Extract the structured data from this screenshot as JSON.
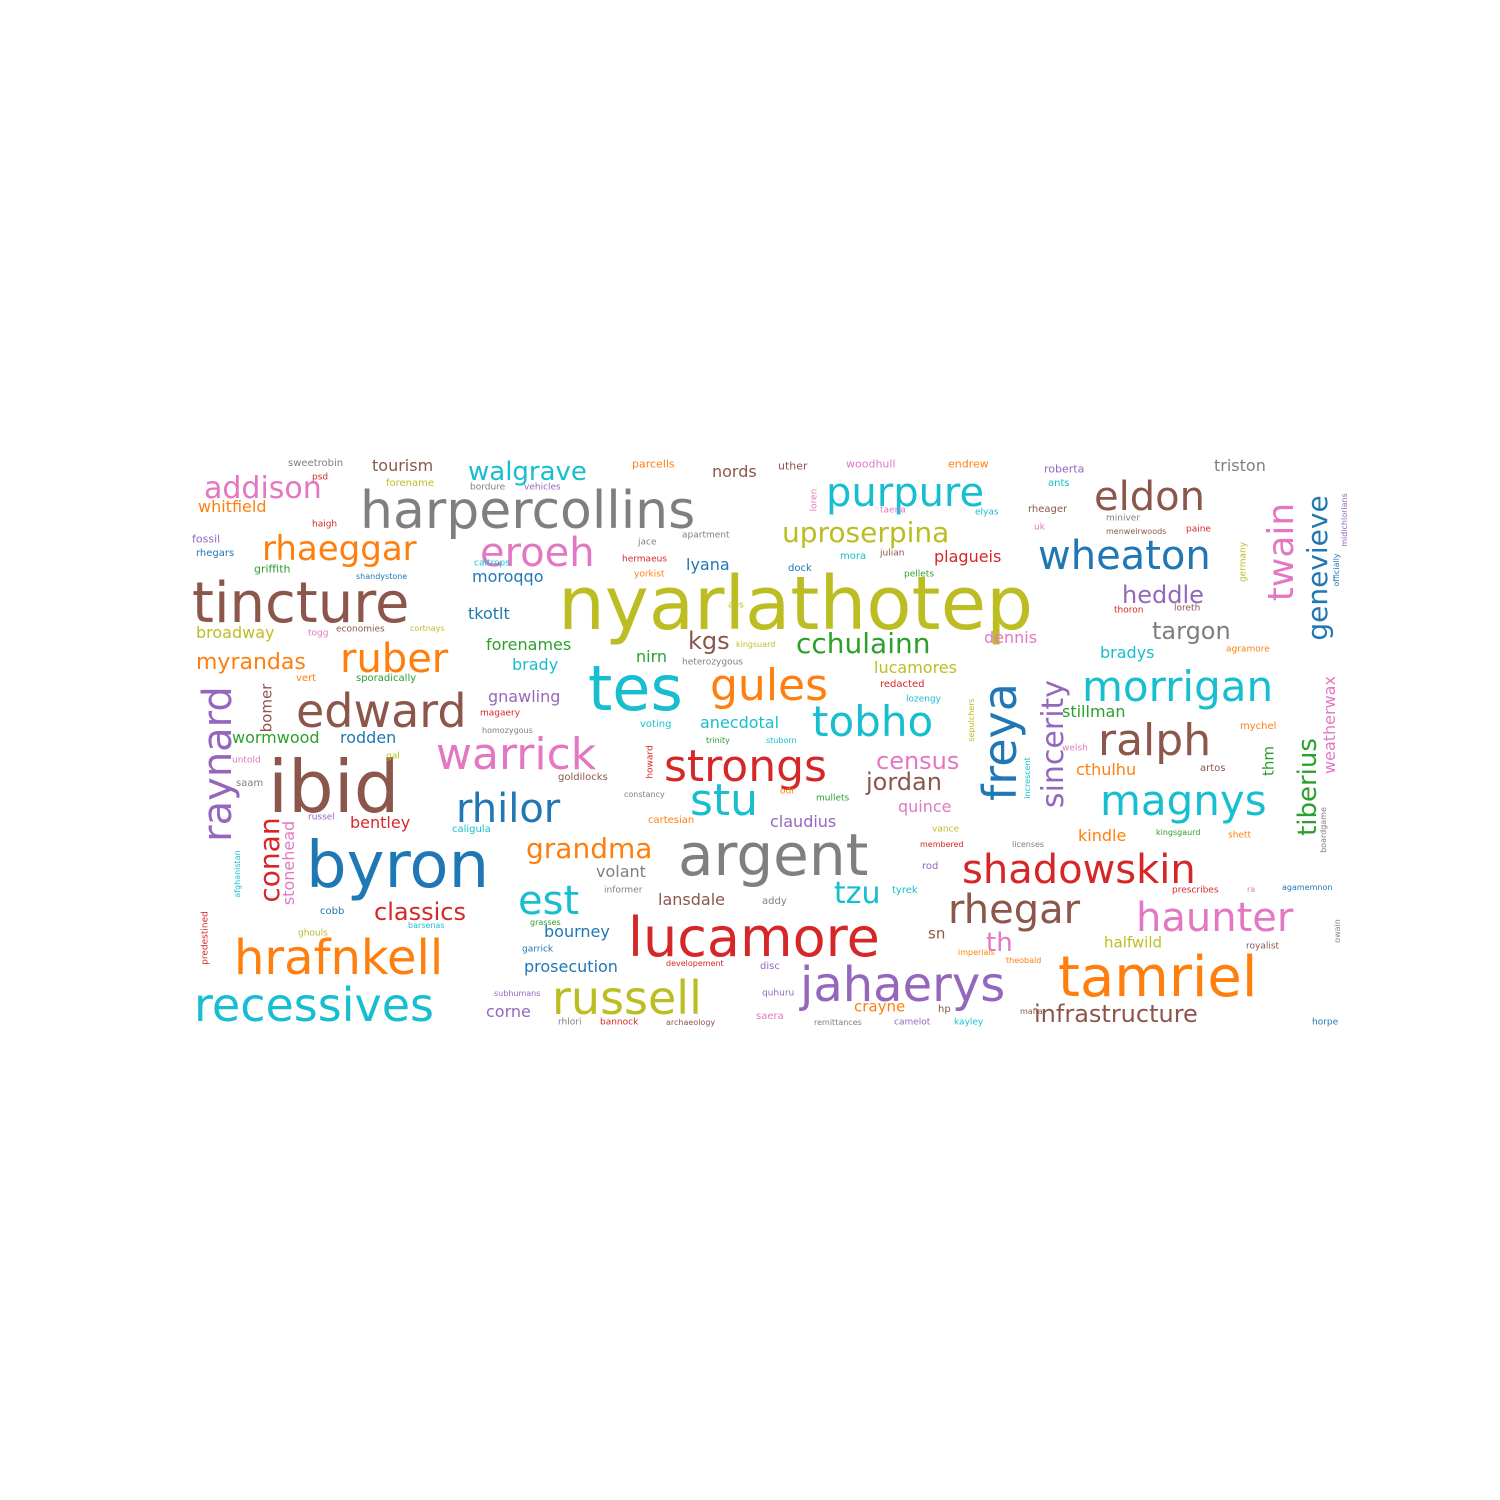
{
  "colors": {
    "blue": "#1f77b4",
    "orange": "#ff7f0e",
    "green": "#2ca02c",
    "red": "#d62728",
    "purple": "#9467bd",
    "brown": "#8c564b",
    "pink": "#e377c2",
    "gray": "#7f7f7f",
    "olive": "#bcbd22",
    "cyan": "#17becf",
    "background": "#ffffff"
  },
  "words": [
    {
      "text": "nyarlathotep",
      "color": "olive",
      "weight": 1.0
    },
    {
      "text": "harpercollins",
      "color": "gray",
      "weight": 0.55
    },
    {
      "text": "tincture",
      "color": "brown",
      "weight": 0.6
    },
    {
      "text": "tes",
      "color": "cyan",
      "weight": 0.75
    },
    {
      "text": "ibid",
      "color": "brown",
      "weight": 0.8
    },
    {
      "text": "byron",
      "color": "blue",
      "weight": 0.75
    },
    {
      "text": "argent",
      "color": "gray",
      "weight": 0.7
    },
    {
      "text": "lucamore",
      "color": "red",
      "weight": 0.6
    },
    {
      "text": "tamriel",
      "color": "orange",
      "weight": 0.6
    },
    {
      "text": "hrafnkell",
      "color": "orange",
      "weight": 0.5
    },
    {
      "text": "recessives",
      "color": "cyan",
      "weight": 0.5
    },
    {
      "text": "russell",
      "color": "olive",
      "weight": 0.5
    },
    {
      "text": "jahaerys",
      "color": "purple",
      "weight": 0.5
    },
    {
      "text": "edward",
      "color": "brown",
      "weight": 0.48
    },
    {
      "text": "warrick",
      "color": "pink",
      "weight": 0.45
    },
    {
      "text": "strongs",
      "color": "red",
      "weight": 0.45
    },
    {
      "text": "gules",
      "color": "orange",
      "weight": 0.45
    },
    {
      "text": "tobho",
      "color": "cyan",
      "weight": 0.45
    },
    {
      "text": "rhilor",
      "color": "blue",
      "weight": 0.42
    },
    {
      "text": "stu",
      "color": "cyan",
      "weight": 0.45
    },
    {
      "text": "freya",
      "color": "blue",
      "weight": 0.48
    },
    {
      "text": "ralph",
      "color": "brown",
      "weight": 0.45
    },
    {
      "text": "morrigan",
      "color": "cyan",
      "weight": 0.42
    },
    {
      "text": "magnys",
      "color": "cyan",
      "weight": 0.42
    },
    {
      "text": "shadowskin",
      "color": "red",
      "weight": 0.42
    },
    {
      "text": "rhegar",
      "color": "brown",
      "weight": 0.42
    },
    {
      "text": "haunter",
      "color": "pink",
      "weight": 0.42
    },
    {
      "text": "wheaton",
      "color": "blue",
      "weight": 0.42
    },
    {
      "text": "eldon",
      "color": "brown",
      "weight": 0.42
    },
    {
      "text": "purpure",
      "color": "cyan",
      "weight": 0.42
    },
    {
      "text": "eroeh",
      "color": "pink",
      "weight": 0.42
    },
    {
      "text": "ruber",
      "color": "orange",
      "weight": 0.42
    },
    {
      "text": "raynard",
      "color": "purple",
      "weight": 0.42
    },
    {
      "text": "twain",
      "color": "pink",
      "weight": 0.4
    },
    {
      "text": "genevieve",
      "color": "blue",
      "weight": 0.33
    },
    {
      "text": "sincerity",
      "color": "purple",
      "weight": 0.33
    },
    {
      "text": "tiberius",
      "color": "green",
      "weight": 0.3
    },
    {
      "text": "rhaeggar",
      "color": "orange",
      "weight": 0.35
    },
    {
      "text": "addison",
      "color": "pink",
      "weight": 0.33
    },
    {
      "text": "walgrave",
      "color": "cyan",
      "weight": 0.28
    },
    {
      "text": "uproserpina",
      "color": "olive",
      "weight": 0.3
    },
    {
      "text": "cchulainn",
      "color": "green",
      "weight": 0.3
    },
    {
      "text": "grandma",
      "color": "orange",
      "weight": 0.3
    },
    {
      "text": "est",
      "color": "cyan",
      "weight": 0.4
    },
    {
      "text": "conan",
      "color": "red",
      "weight": 0.3
    },
    {
      "text": "classics",
      "color": "red",
      "weight": 0.25
    },
    {
      "text": "tzu",
      "color": "cyan",
      "weight": 0.3
    },
    {
      "text": "th",
      "color": "pink",
      "weight": 0.28
    },
    {
      "text": "heddle",
      "color": "purple",
      "weight": 0.25
    },
    {
      "text": "targon",
      "color": "gray",
      "weight": 0.25
    },
    {
      "text": "census",
      "color": "pink",
      "weight": 0.25
    },
    {
      "text": "jordan",
      "color": "brown",
      "weight": 0.25
    },
    {
      "text": "kgs",
      "color": "brown",
      "weight": 0.25
    },
    {
      "text": "myrandas",
      "color": "orange",
      "weight": 0.22
    },
    {
      "text": "infrastructure",
      "color": "brown",
      "weight": 0.25
    },
    {
      "text": "stonehead",
      "color": "pink",
      "weight": 0.2
    },
    {
      "text": "weatherwax",
      "color": "pink",
      "weight": 0.2
    },
    {
      "text": "whitfield",
      "color": "orange",
      "weight": 0.18
    },
    {
      "text": "tourism",
      "color": "brown",
      "weight": 0.18
    },
    {
      "text": "nords",
      "color": "brown",
      "weight": 0.18
    },
    {
      "text": "triston",
      "color": "gray",
      "weight": 0.18
    },
    {
      "text": "broadway",
      "color": "olive",
      "weight": 0.18
    },
    {
      "text": "moroqqo",
      "color": "blue",
      "weight": 0.17
    },
    {
      "text": "lyana",
      "color": "blue",
      "weight": 0.17
    },
    {
      "text": "plagueis",
      "color": "red",
      "weight": 0.17
    },
    {
      "text": "tkotlt",
      "color": "blue",
      "weight": 0.18
    },
    {
      "text": "forenames",
      "color": "green",
      "weight": 0.17
    },
    {
      "text": "brady",
      "color": "cyan",
      "weight": 0.17
    },
    {
      "text": "nirn",
      "color": "green",
      "weight": 0.17
    },
    {
      "text": "lucamores",
      "color": "olive",
      "weight": 0.17
    },
    {
      "text": "dennis",
      "color": "pink",
      "weight": 0.17
    },
    {
      "text": "bradys",
      "color": "cyan",
      "weight": 0.17
    },
    {
      "text": "gnawling",
      "color": "purple",
      "weight": 0.17
    },
    {
      "text": "anecdotal",
      "color": "cyan",
      "weight": 0.17
    },
    {
      "text": "wormwood",
      "color": "green",
      "weight": 0.17
    },
    {
      "text": "rodden",
      "color": "blue",
      "weight": 0.17
    },
    {
      "text": "stillman",
      "color": "green",
      "weight": 0.17
    },
    {
      "text": "cthulhu",
      "color": "orange",
      "weight": 0.17
    },
    {
      "text": "bentley",
      "color": "red",
      "weight": 0.17
    },
    {
      "text": "claudius",
      "color": "purple",
      "weight": 0.17
    },
    {
      "text": "quince",
      "color": "pink",
      "weight": 0.17
    },
    {
      "text": "kindle",
      "color": "orange",
      "weight": 0.17
    },
    {
      "text": "volant",
      "color": "gray",
      "weight": 0.17
    },
    {
      "text": "lansdale",
      "color": "brown",
      "weight": 0.17
    },
    {
      "text": "bourney",
      "color": "blue",
      "weight": 0.17
    },
    {
      "text": "prosecution",
      "color": "blue",
      "weight": 0.17
    },
    {
      "text": "corne",
      "color": "purple",
      "weight": 0.17
    },
    {
      "text": "crayne",
      "color": "orange",
      "weight": 0.15
    },
    {
      "text": "halfwild",
      "color": "olive",
      "weight": 0.15
    },
    {
      "text": "sn",
      "color": "brown",
      "weight": 0.15
    },
    {
      "text": "bomer",
      "color": "brown",
      "weight": 0.15
    },
    {
      "text": "thm",
      "color": "green",
      "weight": 0.15
    },
    {
      "text": "sweetrobin",
      "color": "gray",
      "weight": 0.1
    },
    {
      "text": "parcells",
      "color": "orange",
      "weight": 0.11
    },
    {
      "text": "uther",
      "color": "brown",
      "weight": 0.11
    },
    {
      "text": "woodhull",
      "color": "pink",
      "weight": 0.11
    },
    {
      "text": "endrew",
      "color": "orange",
      "weight": 0.11
    },
    {
      "text": "roberta",
      "color": "purple",
      "weight": 0.11
    },
    {
      "text": "forename",
      "color": "olive",
      "weight": 0.1
    },
    {
      "text": "bordure",
      "color": "gray",
      "weight": 0.09
    },
    {
      "text": "vehicles",
      "color": "purple",
      "weight": 0.09
    },
    {
      "text": "loren",
      "color": "pink",
      "weight": 0.09
    },
    {
      "text": "elyas",
      "color": "cyan",
      "weight": 0.09
    },
    {
      "text": "rheager",
      "color": "brown",
      "weight": 0.1
    },
    {
      "text": "ants",
      "color": "cyan",
      "weight": 0.1
    },
    {
      "text": "psd",
      "color": "red",
      "weight": 0.09
    },
    {
      "text": "haigh",
      "color": "red",
      "weight": 0.09
    },
    {
      "text": "fossil",
      "color": "purple",
      "weight": 0.11
    },
    {
      "text": "rhegars",
      "color": "blue",
      "weight": 0.1
    },
    {
      "text": "griffith",
      "color": "green",
      "weight": 0.11
    },
    {
      "text": "jace",
      "color": "gray",
      "weight": 0.09
    },
    {
      "text": "apartment",
      "color": "gray",
      "weight": 0.09
    },
    {
      "text": "taena",
      "color": "pink",
      "weight": 0.09
    },
    {
      "text": "miniver",
      "color": "gray",
      "weight": 0.09
    },
    {
      "text": "uk",
      "color": "pink",
      "weight": 0.09
    },
    {
      "text": "menweirwoods",
      "color": "brown",
      "weight": 0.08
    },
    {
      "text": "paine",
      "color": "red",
      "weight": 0.09
    },
    {
      "text": "germany",
      "color": "olive",
      "weight": 0.09
    },
    {
      "text": "officially",
      "color": "blue",
      "weight": 0.08
    },
    {
      "text": "midichlorians",
      "color": "purple",
      "weight": 0.08
    },
    {
      "text": "caltrops",
      "color": "cyan",
      "weight": 0.09
    },
    {
      "text": "shandystone",
      "color": "blue",
      "weight": 0.08
    },
    {
      "text": "hermaeus",
      "color": "red",
      "weight": 0.09
    },
    {
      "text": "yorkist",
      "color": "orange",
      "weight": 0.09
    },
    {
      "text": "mora",
      "color": "cyan",
      "weight": 0.1
    },
    {
      "text": "julian",
      "color": "brown",
      "weight": 0.09
    },
    {
      "text": "dock",
      "color": "blue",
      "weight": 0.1
    },
    {
      "text": "pellets",
      "color": "green",
      "weight": 0.09
    },
    {
      "text": "aes",
      "color": "olive",
      "weight": 0.09
    },
    {
      "text": "thoron",
      "color": "red",
      "weight": 0.09
    },
    {
      "text": "loreth",
      "color": "brown",
      "weight": 0.09
    },
    {
      "text": "togg",
      "color": "pink",
      "weight": 0.09
    },
    {
      "text": "economies",
      "color": "brown",
      "weight": 0.09
    },
    {
      "text": "cortnays",
      "color": "olive",
      "weight": 0.08
    },
    {
      "text": "kingsuard",
      "color": "olive",
      "weight": 0.08
    },
    {
      "text": "agramore",
      "color": "orange",
      "weight": 0.09
    },
    {
      "text": "vert",
      "color": "orange",
      "weight": 0.1
    },
    {
      "text": "sporadically",
      "color": "green",
      "weight": 0.1
    },
    {
      "text": "heterozygous",
      "color": "gray",
      "weight": 0.09
    },
    {
      "text": "redacted",
      "color": "red",
      "weight": 0.1
    },
    {
      "text": "lozengy",
      "color": "cyan",
      "weight": 0.09
    },
    {
      "text": "magaery",
      "color": "red",
      "weight": 0.09
    },
    {
      "text": "homozygous",
      "color": "gray",
      "weight": 0.08
    },
    {
      "text": "voting",
      "color": "cyan",
      "weight": 0.1
    },
    {
      "text": "trinity",
      "color": "green",
      "weight": 0.08
    },
    {
      "text": "stuborn",
      "color": "cyan",
      "weight": 0.08
    },
    {
      "text": "sepulchers",
      "color": "olive",
      "weight": 0.08
    },
    {
      "text": "mychel",
      "color": "orange",
      "weight": 0.1
    },
    {
      "text": "untold",
      "color": "pink",
      "weight": 0.09
    },
    {
      "text": "gal",
      "color": "olive",
      "weight": 0.09
    },
    {
      "text": "saam",
      "color": "gray",
      "weight": 0.1
    },
    {
      "text": "goldilocks",
      "color": "brown",
      "weight": 0.1
    },
    {
      "text": "howard",
      "color": "red",
      "weight": 0.09
    },
    {
      "text": "constancy",
      "color": "gray",
      "weight": 0.08
    },
    {
      "text": "increscent",
      "color": "cyan",
      "weight": 0.08
    },
    {
      "text": "welsh",
      "color": "pink",
      "weight": 0.09
    },
    {
      "text": "artos",
      "color": "brown",
      "weight": 0.1
    },
    {
      "text": "odr",
      "color": "orange",
      "weight": 0.09
    },
    {
      "text": "mullets",
      "color": "green",
      "weight": 0.09
    },
    {
      "text": "russel",
      "color": "purple",
      "weight": 0.09
    },
    {
      "text": "caligula",
      "color": "cyan",
      "weight": 0.1
    },
    {
      "text": "cartesian",
      "color": "orange",
      "weight": 0.1
    },
    {
      "text": "vance",
      "color": "olive",
      "weight": 0.09
    },
    {
      "text": "kingsgaurd",
      "color": "green",
      "weight": 0.08
    },
    {
      "text": "shett",
      "color": "orange",
      "weight": 0.09
    },
    {
      "text": "boardgame",
      "color": "gray",
      "weight": 0.08
    },
    {
      "text": "afghanistan",
      "color": "cyan",
      "weight": 0.08
    },
    {
      "text": "membered",
      "color": "red",
      "weight": 0.08
    },
    {
      "text": "licenses",
      "color": "gray",
      "weight": 0.08
    },
    {
      "text": "rod",
      "color": "purple",
      "weight": 0.1
    },
    {
      "text": "informer",
      "color": "gray",
      "weight": 0.09
    },
    {
      "text": "addy",
      "color": "gray",
      "weight": 0.1
    },
    {
      "text": "tyrek",
      "color": "cyan",
      "weight": 0.1
    },
    {
      "text": "prescribes",
      "color": "red",
      "weight": 0.09
    },
    {
      "text": "ra",
      "color": "pink",
      "weight": 0.08
    },
    {
      "text": "agamemnon",
      "color": "blue",
      "weight": 0.08
    },
    {
      "text": "predestined",
      "color": "red",
      "weight": 0.09
    },
    {
      "text": "cobb",
      "color": "blue",
      "weight": 0.1
    },
    {
      "text": "grasses",
      "color": "green",
      "weight": 0.08
    },
    {
      "text": "ghouls",
      "color": "olive",
      "weight": 0.09
    },
    {
      "text": "barsenas",
      "color": "cyan",
      "weight": 0.08
    },
    {
      "text": "owain",
      "color": "gray",
      "weight": 0.08
    },
    {
      "text": "garrick",
      "color": "blue",
      "weight": 0.09
    },
    {
      "text": "imperials",
      "color": "orange",
      "weight": 0.08
    },
    {
      "text": "theobald",
      "color": "orange",
      "weight": 0.08
    },
    {
      "text": "royalist",
      "color": "brown",
      "weight": 0.09
    },
    {
      "text": "developement",
      "color": "red",
      "weight": 0.08
    },
    {
      "text": "disc",
      "color": "purple",
      "weight": 0.1
    },
    {
      "text": "hp",
      "color": "brown",
      "weight": 0.1
    },
    {
      "text": "subhumans",
      "color": "purple",
      "weight": 0.08
    },
    {
      "text": "quhuru",
      "color": "purple",
      "weight": 0.09
    },
    {
      "text": "mafia",
      "color": "brown",
      "weight": 0.08
    },
    {
      "text": "rhlori",
      "color": "gray",
      "weight": 0.09
    },
    {
      "text": "bannock",
      "color": "red",
      "weight": 0.09
    },
    {
      "text": "archaeology",
      "color": "brown",
      "weight": 0.08
    },
    {
      "text": "saera",
      "color": "pink",
      "weight": 0.1
    },
    {
      "text": "remittances",
      "color": "gray",
      "weight": 0.08
    },
    {
      "text": "camelot",
      "color": "purple",
      "weight": 0.09
    },
    {
      "text": "kayley",
      "color": "cyan",
      "weight": 0.09
    },
    {
      "text": "horpe",
      "color": "blue",
      "weight": 0.09
    }
  ]
}
